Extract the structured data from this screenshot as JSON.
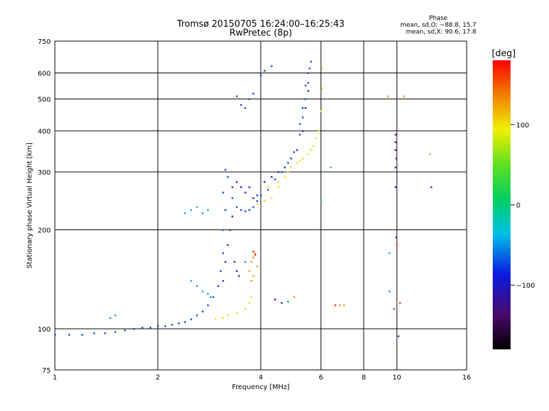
{
  "chart_data": {
    "type": "scatter",
    "title": "Tromsø 20150705 16:24:00–16:25:43",
    "subtitle": "RwPretec (8p)",
    "xlabel": "Frequency [MHz]",
    "ylabel": "Stationary phase Virtual Height [km]",
    "x_scale": "log",
    "y_scale": "log",
    "xlim": [
      1,
      16
    ],
    "ylim": [
      75,
      750
    ],
    "x_ticks": [
      "1",
      "2",
      "4",
      "6",
      "8",
      "10",
      "16"
    ],
    "x_tick_values": [
      1,
      2,
      4,
      6,
      8,
      10,
      16
    ],
    "y_ticks": [
      "75",
      "100",
      "200",
      "300",
      "400",
      "500",
      "600",
      "750"
    ],
    "y_tick_values": [
      75,
      100,
      200,
      300,
      400,
      500,
      600,
      750
    ],
    "grid": true,
    "phase_stats": {
      "heading": "Phase",
      "o_line": "mean, sd,O: −88.8, 15.7",
      "x_line": "mean, sd,X:  90.6, 17.8"
    },
    "colorbar": {
      "label": "[deg]",
      "range": [
        -180,
        180
      ],
      "ticks": [
        "100",
        "0",
        "−100"
      ],
      "tick_values": [
        100,
        0,
        -100
      ]
    },
    "series": [
      {
        "color": "#1a4fe0",
        "points": [
          [
            1.0,
            96
          ],
          [
            1.1,
            96
          ],
          [
            1.2,
            96
          ],
          [
            1.3,
            97
          ],
          [
            1.4,
            97
          ],
          [
            1.5,
            98
          ],
          [
            1.6,
            99
          ],
          [
            1.7,
            100
          ],
          [
            1.8,
            101
          ],
          [
            1.9,
            101
          ],
          [
            2.0,
            102
          ],
          [
            2.1,
            102
          ],
          [
            2.2,
            103
          ],
          [
            2.3,
            104
          ],
          [
            2.4,
            105
          ],
          [
            2.5,
            107
          ],
          [
            2.6,
            110
          ],
          [
            2.7,
            113
          ],
          [
            2.8,
            118
          ],
          [
            2.9,
            125
          ],
          [
            3.0,
            135
          ],
          [
            3.05,
            150
          ],
          [
            3.1,
            170
          ],
          [
            3.1,
            200
          ],
          [
            3.15,
            230
          ],
          [
            3.1,
            260
          ],
          [
            3.2,
            290
          ],
          [
            3.15,
            305
          ],
          [
            3.3,
            250
          ],
          [
            3.4,
            235
          ],
          [
            3.5,
            230
          ],
          [
            3.6,
            228
          ],
          [
            3.7,
            230
          ],
          [
            3.8,
            235
          ],
          [
            3.9,
            245
          ],
          [
            4.0,
            255
          ],
          [
            4.2,
            265
          ],
          [
            4.4,
            285
          ],
          [
            4.6,
            300
          ],
          [
            4.8,
            320
          ],
          [
            5.0,
            345
          ],
          [
            5.2,
            390
          ],
          [
            5.3,
            440
          ],
          [
            5.4,
            500
          ],
          [
            5.5,
            560
          ],
          [
            5.55,
            620
          ],
          [
            5.6,
            650
          ],
          [
            3.5,
            480
          ],
          [
            3.6,
            470
          ],
          [
            3.7,
            500
          ],
          [
            3.8,
            520
          ],
          [
            4.0,
            590
          ],
          [
            4.1,
            610
          ],
          [
            4.3,
            630
          ],
          [
            3.4,
            510
          ],
          [
            5.2,
            420
          ],
          [
            5.3,
            470
          ],
          [
            5.4,
            550
          ]
        ]
      },
      {
        "color": "#2a2ab8",
        "points": [
          [
            3.1,
            140
          ],
          [
            3.15,
            160
          ],
          [
            3.2,
            180
          ],
          [
            3.25,
            200
          ],
          [
            3.3,
            220
          ],
          [
            3.35,
            160
          ],
          [
            3.4,
            150
          ],
          [
            3.45,
            145
          ],
          [
            3.3,
            270
          ],
          [
            3.4,
            280
          ],
          [
            3.5,
            270
          ],
          [
            3.6,
            260
          ],
          [
            3.7,
            270
          ],
          [
            3.8,
            250
          ],
          [
            3.9,
            255
          ],
          [
            4.1,
            280
          ],
          [
            4.3,
            290
          ],
          [
            4.5,
            300
          ],
          [
            4.7,
            310
          ],
          [
            4.9,
            330
          ],
          [
            5.1,
            350
          ],
          [
            5.3,
            400
          ],
          [
            5.4,
            470
          ],
          [
            5.5,
            530
          ],
          [
            5.5,
            600
          ]
        ]
      },
      {
        "color": "#1aa0e6",
        "points": [
          [
            2.4,
            225
          ],
          [
            2.5,
            230
          ],
          [
            2.6,
            235
          ],
          [
            2.7,
            225
          ],
          [
            2.8,
            230
          ],
          [
            2.5,
            140
          ],
          [
            2.6,
            135
          ],
          [
            2.7,
            130
          ],
          [
            2.8,
            128
          ],
          [
            2.85,
            125
          ],
          [
            1.45,
            108
          ],
          [
            1.5,
            110
          ],
          [
            3.6,
            160
          ],
          [
            9.5,
            130
          ]
        ]
      },
      {
        "color": "#f0e020",
        "points": [
          [
            2.95,
            107
          ],
          [
            3.1,
            108
          ],
          [
            3.2,
            110
          ],
          [
            3.4,
            112
          ],
          [
            3.6,
            115
          ],
          [
            3.7,
            120
          ],
          [
            3.75,
            125
          ],
          [
            3.9,
            240
          ],
          [
            4.1,
            245
          ],
          [
            4.3,
            250
          ],
          [
            4.5,
            270
          ],
          [
            4.7,
            290
          ],
          [
            4.9,
            310
          ],
          [
            5.1,
            320
          ],
          [
            5.3,
            330
          ],
          [
            5.5,
            340
          ],
          [
            5.7,
            360
          ],
          [
            5.9,
            400
          ],
          [
            6.0,
            460
          ],
          [
            6.05,
            540
          ],
          [
            6.05,
            620
          ],
          [
            4.2,
            270
          ],
          [
            4.5,
            280
          ],
          [
            4.8,
            300
          ],
          [
            5.2,
            325
          ],
          [
            5.6,
            350
          ],
          [
            5.8,
            380
          ]
        ]
      },
      {
        "color": "#f0a020",
        "points": [
          [
            3.7,
            150
          ],
          [
            3.75,
            160
          ],
          [
            3.8,
            165
          ],
          [
            3.85,
            170
          ],
          [
            3.9,
            155
          ],
          [
            3.8,
            145
          ],
          [
            3.75,
            140
          ],
          [
            6.8,
            118
          ],
          [
            7.0,
            118
          ],
          [
            10.5,
            510
          ],
          [
            12.5,
            340
          ],
          [
            9.4,
            510
          ],
          [
            5.0,
            125
          ]
        ]
      },
      {
        "color": "#f03a10",
        "points": [
          [
            3.8,
            172
          ],
          [
            3.85,
            168
          ],
          [
            6.6,
            118
          ],
          [
            10.2,
            120
          ],
          [
            9.8,
            115
          ],
          [
            10.0,
            180
          ]
        ]
      },
      {
        "color": "#6a1a8a",
        "points": [
          [
            9.9,
            390
          ],
          [
            9.9,
            370
          ],
          [
            9.9,
            350
          ],
          [
            9.95,
            330
          ],
          [
            9.9,
            310
          ],
          [
            9.9,
            270
          ],
          [
            12.6,
            270
          ],
          [
            9.95,
            190
          ],
          [
            4.4,
            123
          ],
          [
            4.6,
            120
          ],
          [
            10.1,
            95
          ]
        ]
      },
      {
        "color": "#20c060",
        "points": [
          [
            4.8,
            121
          ],
          [
            6.0,
            245
          ],
          [
            6.4,
            310
          ],
          [
            9.5,
            170
          ]
        ]
      }
    ]
  }
}
